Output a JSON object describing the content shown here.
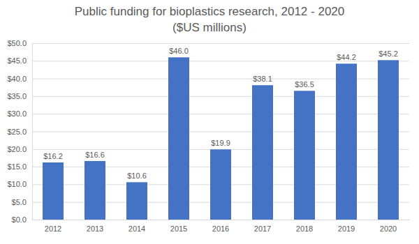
{
  "chart_data": {
    "type": "bar",
    "title": "Public funding for bioplastics research, 2012 - 2020",
    "subtitle": "($US millions)",
    "categories": [
      "2012",
      "2013",
      "2014",
      "2015",
      "2016",
      "2017",
      "2018",
      "2019",
      "2020"
    ],
    "values": [
      16.2,
      16.6,
      10.6,
      46.0,
      19.9,
      38.1,
      36.5,
      44.2,
      45.2
    ],
    "value_labels": [
      "$16.2",
      "$16.6",
      "$10.6",
      "$46.0",
      "$19.9",
      "$38.1",
      "$36.5",
      "$44.2",
      "$45.2"
    ],
    "color": "#4472c4",
    "ylim": [
      0,
      50
    ],
    "yticks": [
      {
        "value": 0,
        "label": "$0.0"
      },
      {
        "value": 5,
        "label": "$5.0"
      },
      {
        "value": 10,
        "label": "$10.0"
      },
      {
        "value": 15,
        "label": "$15.0"
      },
      {
        "value": 20,
        "label": "$20.0"
      },
      {
        "value": 25,
        "label": "$25.0"
      },
      {
        "value": 30,
        "label": "$30.0"
      },
      {
        "value": 35,
        "label": "$35.0"
      },
      {
        "value": 40,
        "label": "$40.0"
      },
      {
        "value": 45,
        "label": "$45.0"
      },
      {
        "value": 50,
        "label": "$50.0"
      }
    ],
    "grid": true,
    "data_labels": true
  }
}
